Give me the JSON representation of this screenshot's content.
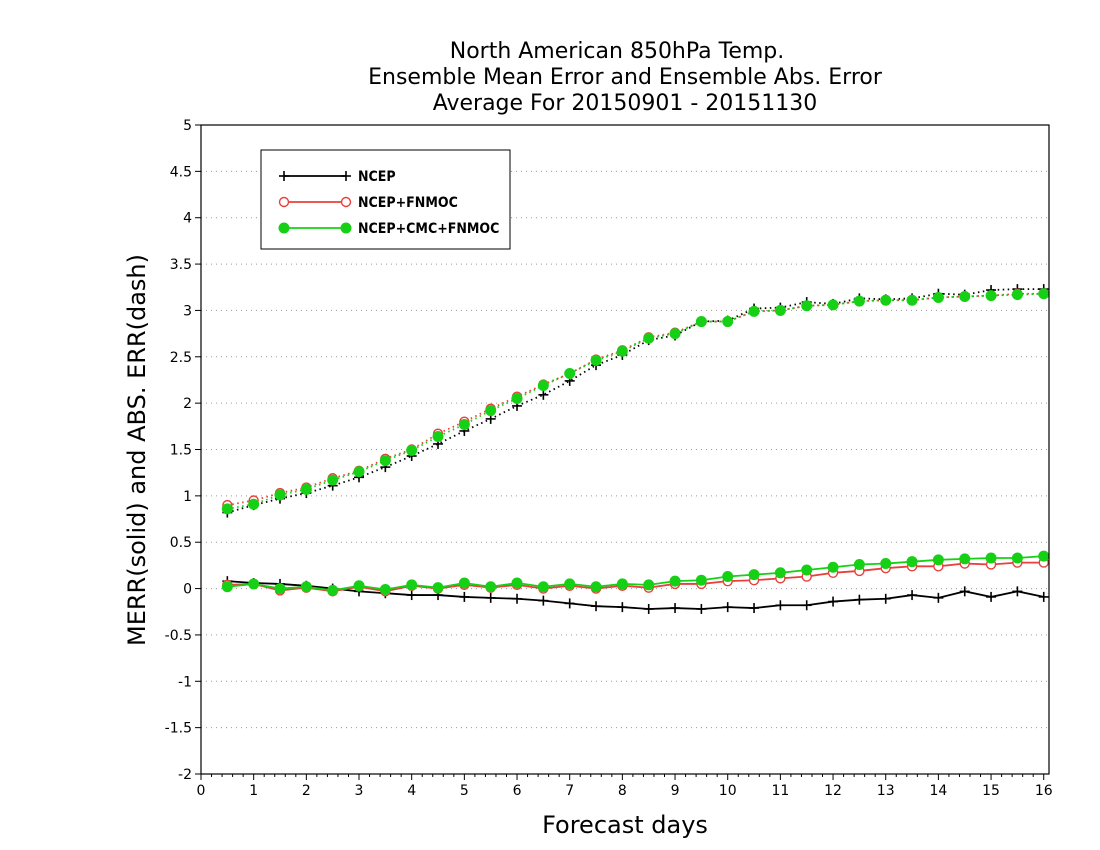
{
  "chart_data": {
    "type": "line",
    "title_lines": [
      "North American 850hPa Temp.",
      "Ensemble Mean Error and Ensemble Abs. Error",
      "Average For 20150901 - 20151130"
    ],
    "xlabel": "Forecast days",
    "ylabel": "MERR(solid) and ABS. ERR(dash)",
    "xlim": [
      0,
      16.1
    ],
    "ylim": [
      -2,
      5
    ],
    "x_ticks": [
      0,
      1,
      2,
      3,
      4,
      5,
      6,
      7,
      8,
      9,
      10,
      11,
      12,
      13,
      14,
      15,
      16
    ],
    "y_ticks": [
      -2,
      -1.5,
      -1,
      -0.5,
      0,
      0.5,
      1,
      1.5,
      2,
      2.5,
      3,
      3.5,
      4,
      4.5,
      5
    ],
    "y_tick_labels": [
      "-2",
      "-1.5",
      "-1",
      "-0.5",
      "0",
      "0.5",
      "1",
      "1.5",
      "2",
      "2.5",
      "3",
      "3.5",
      "4",
      "4.5",
      "5"
    ],
    "grid": "horizontal-dotted",
    "legend_position": "top-left",
    "x": [
      0.5,
      1,
      1.5,
      2,
      2.5,
      3,
      3.5,
      4,
      4.5,
      5,
      5.5,
      6,
      6.5,
      7,
      7.5,
      8,
      8.5,
      9,
      9.5,
      10,
      10.5,
      11,
      11.5,
      12,
      12.5,
      13,
      13.5,
      14,
      14.5,
      15,
      15.5,
      16
    ],
    "series": [
      {
        "name": "NCEP",
        "color": "#000000",
        "marker": "plus",
        "merr": [
          0.08,
          0.06,
          0.05,
          0.03,
          0.0,
          -0.03,
          -0.05,
          -0.07,
          -0.07,
          -0.09,
          -0.1,
          -0.11,
          -0.13,
          -0.16,
          -0.19,
          -0.2,
          -0.22,
          -0.21,
          -0.22,
          -0.2,
          -0.21,
          -0.18,
          -0.18,
          -0.14,
          -0.12,
          -0.11,
          -0.07,
          -0.1,
          -0.03,
          -0.09,
          -0.03,
          -0.09
        ],
        "abs_err": [
          0.82,
          0.9,
          0.97,
          1.03,
          1.11,
          1.2,
          1.31,
          1.43,
          1.56,
          1.7,
          1.83,
          1.97,
          2.09,
          2.24,
          2.41,
          2.52,
          2.68,
          2.73,
          2.88,
          2.89,
          3.02,
          3.03,
          3.09,
          3.07,
          3.13,
          3.12,
          3.13,
          3.18,
          3.17,
          3.22,
          3.23,
          3.23
        ]
      },
      {
        "name": "NCEP+FNMOC",
        "color": "#e8403c",
        "marker": "open-circle",
        "merr": [
          0.04,
          0.05,
          -0.02,
          0.01,
          -0.03,
          0.02,
          -0.03,
          0.03,
          0.0,
          0.04,
          0.01,
          0.04,
          0.0,
          0.03,
          0.0,
          0.03,
          0.01,
          0.05,
          0.05,
          0.08,
          0.09,
          0.11,
          0.13,
          0.17,
          0.19,
          0.22,
          0.24,
          0.24,
          0.27,
          0.26,
          0.28,
          0.28
        ],
        "abs_err": [
          0.9,
          0.95,
          1.03,
          1.09,
          1.19,
          1.27,
          1.4,
          1.5,
          1.67,
          1.8,
          1.94,
          2.07,
          2.2,
          2.32,
          2.47,
          2.57,
          2.71,
          2.76,
          2.88,
          2.88,
          2.99,
          3.0,
          3.05,
          3.06,
          3.1,
          3.11,
          3.11,
          3.14,
          3.15,
          3.16,
          3.18,
          3.18
        ]
      },
      {
        "name": "NCEP+CMC+FNMOC",
        "color": "#16d016",
        "marker": "filled-circle",
        "merr": [
          0.02,
          0.05,
          0.0,
          0.02,
          -0.02,
          0.03,
          -0.01,
          0.04,
          0.01,
          0.06,
          0.02,
          0.06,
          0.02,
          0.05,
          0.02,
          0.05,
          0.04,
          0.08,
          0.09,
          0.13,
          0.15,
          0.17,
          0.2,
          0.23,
          0.26,
          0.27,
          0.29,
          0.31,
          0.32,
          0.33,
          0.33,
          0.35
        ],
        "abs_err": [
          0.86,
          0.91,
          1.01,
          1.07,
          1.17,
          1.26,
          1.38,
          1.49,
          1.64,
          1.77,
          1.92,
          2.05,
          2.19,
          2.32,
          2.46,
          2.56,
          2.7,
          2.75,
          2.88,
          2.88,
          2.99,
          3.0,
          3.05,
          3.06,
          3.1,
          3.11,
          3.11,
          3.14,
          3.15,
          3.16,
          3.17,
          3.18
        ]
      }
    ]
  }
}
